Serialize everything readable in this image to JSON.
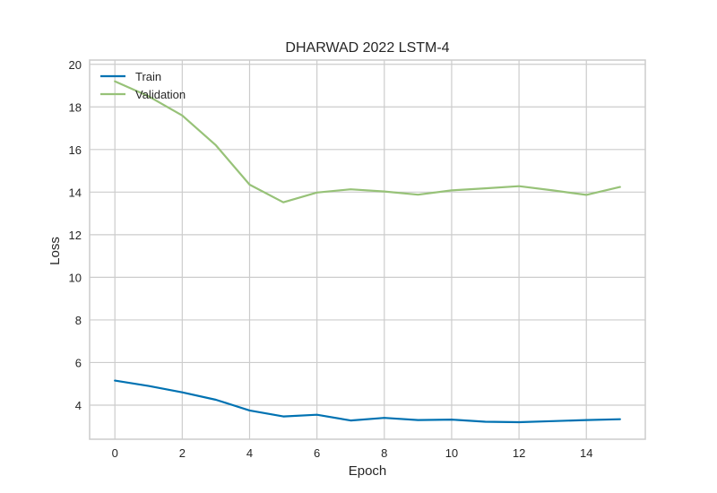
{
  "chart_data": {
    "type": "line",
    "title": "DHARWAD 2022 LSTM-4",
    "xlabel": "Epoch",
    "ylabel": "Loss",
    "xlim": [
      -0.75,
      15.75
    ],
    "ylim": [
      2.4,
      20.2
    ],
    "xticks": [
      0,
      2,
      4,
      6,
      8,
      10,
      12,
      14
    ],
    "yticks": [
      4,
      6,
      8,
      10,
      12,
      14,
      16,
      18,
      20
    ],
    "grid": true,
    "legend_position": "top-left",
    "x": [
      0,
      1,
      2,
      3,
      4,
      5,
      6,
      7,
      8,
      9,
      10,
      11,
      12,
      13,
      14,
      15
    ],
    "series": [
      {
        "name": "Train",
        "color": "#0072B2",
        "values": [
          5.15,
          4.9,
          4.6,
          4.25,
          3.75,
          3.47,
          3.55,
          3.28,
          3.4,
          3.3,
          3.32,
          3.22,
          3.2,
          3.25,
          3.3,
          3.34
        ]
      },
      {
        "name": "Validation",
        "color": "#97C278",
        "values": [
          19.2,
          18.5,
          17.6,
          16.2,
          14.35,
          13.52,
          13.98,
          14.13,
          14.03,
          13.88,
          14.08,
          14.18,
          14.28,
          14.08,
          13.87,
          14.24
        ]
      }
    ]
  }
}
